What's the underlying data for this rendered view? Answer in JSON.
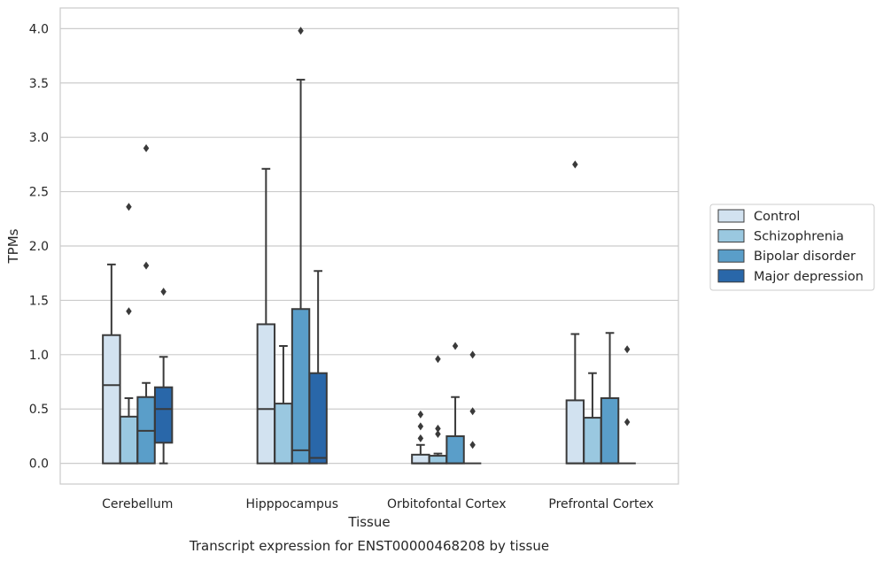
{
  "chart_data": {
    "type": "box",
    "title": "",
    "caption": "Transcript expression for ENST00000468208 by tissue",
    "xlabel": "Tissue",
    "ylabel": "TPMs",
    "ylim": [
      -0.19,
      4.19
    ],
    "yticks": [
      0.0,
      0.5,
      1.0,
      1.5,
      2.0,
      2.5,
      3.0,
      3.5,
      4.0
    ],
    "ytick_labels": [
      "0.0",
      "0.5",
      "1.0",
      "1.5",
      "2.0",
      "2.5",
      "3.0",
      "3.5",
      "4.0"
    ],
    "grid": "horizontal",
    "legend_position": "right",
    "categories": [
      "Cerebellum",
      "Hipppocampus",
      "Orbitofontal Cortex",
      "Prefrontal Cortex"
    ],
    "series": [
      {
        "name": "Control",
        "color": "#d2e2f0",
        "boxes": [
          {
            "min": 0.0,
            "q1": 0.0,
            "median": 0.72,
            "q3": 1.18,
            "max": 1.83,
            "outliers": []
          },
          {
            "min": 0.0,
            "q1": 0.0,
            "median": 0.5,
            "q3": 1.28,
            "max": 2.71,
            "outliers": []
          },
          {
            "min": 0.0,
            "q1": 0.0,
            "median": 0.0,
            "q3": 0.08,
            "max": 0.17,
            "outliers": [
              0.45,
              0.34,
              0.23
            ]
          },
          {
            "min": 0.0,
            "q1": 0.0,
            "median": 0.0,
            "q3": 0.58,
            "max": 1.19,
            "outliers": [
              2.75
            ]
          }
        ]
      },
      {
        "name": "Schizophrenia",
        "color": "#9ac8e0",
        "boxes": [
          {
            "min": 0.0,
            "q1": 0.0,
            "median": 0.0,
            "q3": 0.43,
            "max": 0.6,
            "outliers": [
              2.36,
              1.4
            ]
          },
          {
            "min": 0.0,
            "q1": 0.0,
            "median": 0.0,
            "q3": 0.55,
            "max": 1.08,
            "outliers": []
          },
          {
            "min": 0.0,
            "q1": 0.0,
            "median": 0.0,
            "q3": 0.07,
            "max": 0.09,
            "outliers": [
              0.32,
              0.27,
              0.96
            ]
          },
          {
            "min": 0.0,
            "q1": 0.0,
            "median": 0.0,
            "q3": 0.42,
            "max": 0.83,
            "outliers": []
          }
        ]
      },
      {
        "name": "Bipolar disorder",
        "color": "#5a9ec9",
        "boxes": [
          {
            "min": 0.0,
            "q1": 0.0,
            "median": 0.3,
            "q3": 0.61,
            "max": 0.74,
            "outliers": [
              2.9,
              1.82
            ]
          },
          {
            "min": 0.0,
            "q1": 0.0,
            "median": 0.12,
            "q3": 1.42,
            "max": 3.53,
            "outliers": [
              3.98
            ]
          },
          {
            "min": 0.0,
            "q1": 0.0,
            "median": 0.0,
            "q3": 0.25,
            "max": 0.61,
            "outliers": [
              1.08
            ]
          },
          {
            "min": 0.0,
            "q1": 0.0,
            "median": 0.0,
            "q3": 0.6,
            "max": 1.2,
            "outliers": []
          }
        ]
      },
      {
        "name": "Major depression",
        "color": "#2967a9",
        "boxes": [
          {
            "min": 0.0,
            "q1": 0.19,
            "median": 0.5,
            "q3": 0.7,
            "max": 0.98,
            "outliers": [
              1.58
            ]
          },
          {
            "min": 0.0,
            "q1": 0.0,
            "median": 0.05,
            "q3": 0.83,
            "max": 1.77,
            "outliers": []
          },
          {
            "min": 0.0,
            "q1": 0.0,
            "median": 0.0,
            "q3": 0.0,
            "max": 0.0,
            "outliers": [
              1.0,
              0.48,
              0.17
            ]
          },
          {
            "min": 0.0,
            "q1": 0.0,
            "median": 0.0,
            "q3": 0.0,
            "max": 0.0,
            "outliers": [
              1.05,
              0.38
            ]
          }
        ]
      }
    ]
  }
}
